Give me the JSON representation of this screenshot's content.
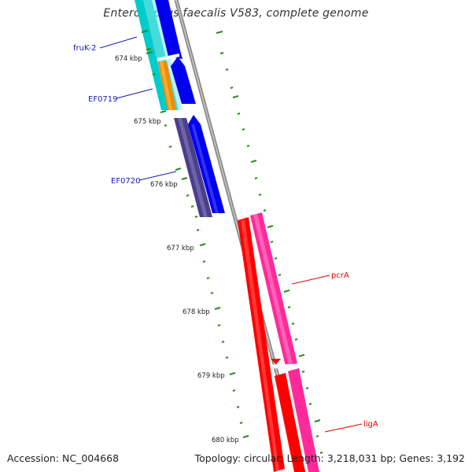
{
  "title": "Enterococcus faecalis V583, complete genome",
  "footer": {
    "accession": "Accession: NC_004668",
    "summary": "Topology: circular; Length: 3,218,031 bp; Genes: 3,192"
  },
  "axis": {
    "tick_labels": [
      "674 kbp",
      "675 kbp",
      "676 kbp",
      "677 kbp",
      "678 kbp",
      "679 kbp",
      "680 kbp"
    ]
  },
  "genes": [
    {
      "name": "fruK-2",
      "color": "#1A1AAE"
    },
    {
      "name": "EF0719",
      "color": "#1A1AAE"
    },
    {
      "name": "EF0720",
      "color": "#1A1AAE"
    },
    {
      "name": "pcrA",
      "color": "#E00000"
    },
    {
      "name": "ligA",
      "color": "#E00000"
    }
  ],
  "colors": {
    "backbone": "#8A8A8A",
    "tick": "#2D8A1F",
    "forward_cds": "#0000EE",
    "reverse_cds": "#FF0000",
    "feature_cyan": "#00C8C8",
    "feature_orange": "#F08C00",
    "feature_purple": "#4B3F8C",
    "feature_pink": "#FF2A9A"
  }
}
